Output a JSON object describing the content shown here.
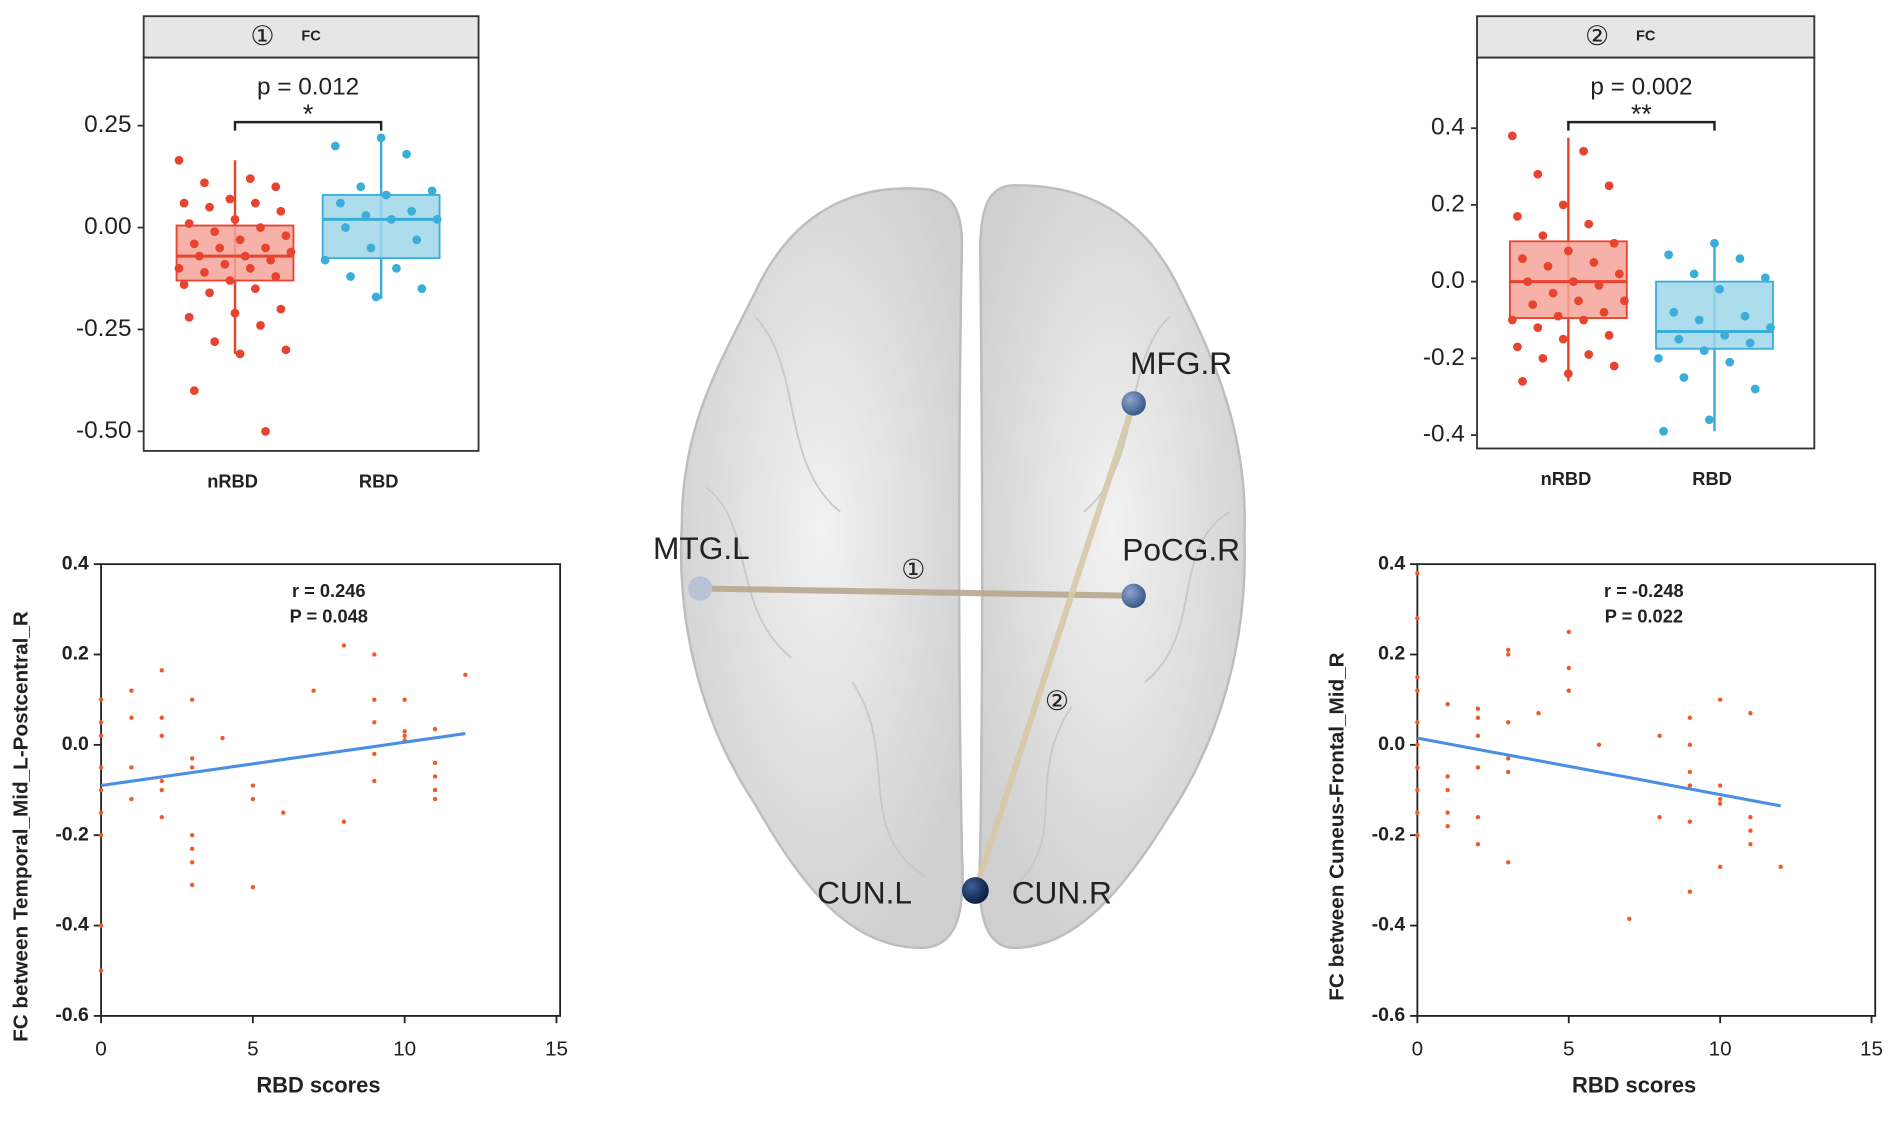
{
  "chart_data": [
    {
      "type": "box",
      "panel_label": "①",
      "title": "FC",
      "categories": [
        "nRBD",
        "RBD"
      ],
      "colors": [
        "#e8432e",
        "#3aaed8"
      ],
      "fill_colors": [
        "#f4a49a",
        "#9fd6ea"
      ],
      "ylim": [
        -0.548,
        0.417
      ],
      "yticks": [
        {
          "value": -0.5,
          "label": "-0.50"
        },
        -0.25,
        {
          "value": 0,
          "label": "0.00"
        },
        0.25
      ],
      "boxes": [
        {
          "min": -0.31,
          "q1": -0.13,
          "median": -0.07,
          "q3": 0.005,
          "max": 0.165
        },
        {
          "min": -0.175,
          "q1": -0.075,
          "median": 0.02,
          "q3": 0.08,
          "max": 0.22
        }
      ],
      "points": [
        [
          0.165,
          0.12,
          0.11,
          0.1,
          0.07,
          0.06,
          0.06,
          0.05,
          0.04,
          0.02,
          0.01,
          0,
          -0.01,
          -0.02,
          -0.03,
          -0.04,
          -0.05,
          -0.05,
          -0.06,
          -0.07,
          -0.07,
          -0.08,
          -0.09,
          -0.1,
          -0.1,
          -0.11,
          -0.12,
          -0.13,
          -0.14,
          -0.15,
          -0.16,
          -0.2,
          -0.21,
          -0.22,
          -0.24,
          -0.28,
          -0.3,
          -0.31,
          -0.4,
          -0.5
        ],
        [
          0.22,
          0.2,
          0.18,
          0.1,
          0.09,
          0.08,
          0.06,
          0.04,
          0.03,
          0.02,
          0.02,
          0,
          -0.03,
          -0.05,
          -0.08,
          -0.1,
          -0.12,
          -0.15,
          -0.17
        ]
      ],
      "p_text": "p = 0.012",
      "significance": "*"
    },
    {
      "type": "box",
      "panel_label": "②",
      "title": "FC",
      "categories": [
        "nRBD",
        "RBD"
      ],
      "colors": [
        "#e8432e",
        "#3aaed8"
      ],
      "fill_colors": [
        "#f4a49a",
        "#9fd6ea"
      ],
      "ylim": [
        -0.435,
        0.584
      ],
      "yticks": [
        -0.4,
        -0.2,
        {
          "value": 0,
          "label": "0.0"
        },
        0.2,
        0.4
      ],
      "boxes": [
        {
          "min": -0.26,
          "q1": -0.095,
          "median": 0,
          "q3": 0.105,
          "max": 0.375
        },
        {
          "min": -0.39,
          "q1": -0.175,
          "median": -0.13,
          "q3": 0,
          "max": 0.1
        }
      ],
      "points": [
        [
          0.38,
          0.34,
          0.28,
          0.25,
          0.2,
          0.17,
          0.15,
          0.12,
          0.1,
          0.08,
          0.06,
          0.05,
          0.04,
          0.02,
          0,
          0,
          -0.01,
          -0.03,
          -0.05,
          -0.05,
          -0.06,
          -0.08,
          -0.09,
          -0.1,
          -0.1,
          -0.12,
          -0.14,
          -0.15,
          -0.17,
          -0.19,
          -0.2,
          -0.22,
          -0.24,
          -0.26
        ],
        [
          0.1,
          0.07,
          0.06,
          0.02,
          0.01,
          -0.02,
          -0.08,
          -0.09,
          -0.1,
          -0.12,
          -0.14,
          -0.15,
          -0.16,
          -0.18,
          -0.2,
          -0.21,
          -0.25,
          -0.28,
          -0.36,
          -0.39
        ]
      ],
      "p_text": "p = 0.002",
      "significance": "**"
    },
    {
      "type": "scatter",
      "x_label": "RBD scores",
      "y_label": "FC between Temporal_Mid_L-Postcentral_R",
      "stats": [
        "r = 0.246",
        "P = 0.048"
      ],
      "color": "#f05a28",
      "fit_color": "#4a90e2",
      "xlim": [
        0,
        15
      ],
      "ylim": [
        -0.6,
        0.4
      ],
      "xticks": [
        0,
        5,
        10,
        15
      ],
      "yticks": [
        -0.6,
        -0.4,
        -0.2,
        {
          "value": 0,
          "label": "0.0"
        },
        0.2,
        0.4
      ],
      "x": [
        0,
        0,
        0,
        0,
        0,
        0,
        0,
        0,
        0,
        1,
        1,
        1,
        1,
        2,
        2,
        2,
        2,
        2,
        2,
        3,
        3,
        3,
        3,
        3,
        3,
        3,
        4,
        5,
        5,
        5,
        6,
        7,
        8,
        8,
        9,
        9,
        9,
        9,
        9,
        10,
        10,
        10,
        10,
        11,
        11,
        11,
        11,
        11,
        12
      ],
      "y": [
        0.1,
        0.05,
        0.02,
        -0.05,
        -0.1,
        -0.15,
        -0.2,
        -0.4,
        -0.5,
        0.12,
        0.06,
        -0.05,
        -0.12,
        0.165,
        0.06,
        0.02,
        -0.08,
        -0.1,
        -0.16,
        0.1,
        -0.03,
        -0.05,
        -0.2,
        -0.23,
        -0.26,
        -0.31,
        0.015,
        -0.09,
        -0.12,
        -0.315,
        -0.15,
        0.12,
        0.22,
        -0.17,
        0.2,
        0.1,
        0.05,
        -0.02,
        -0.08,
        0.1,
        0.03,
        0.02,
        0.01,
        -0.04,
        -0.07,
        -0.1,
        -0.12,
        0.035,
        0.155
      ],
      "fit": {
        "x": [
          0,
          12
        ],
        "y": [
          -0.09,
          0.025
        ]
      }
    },
    {
      "type": "scatter",
      "x_label": "RBD scores",
      "y_label": "FC between Cuneus-Frontal_Mid_R",
      "stats": [
        "r = -0.248",
        "P = 0.022"
      ],
      "color": "#f05a28",
      "fit_color": "#4a90e2",
      "xlim": [
        0,
        15
      ],
      "ylim": [
        -0.6,
        0.4
      ],
      "xticks": [
        0,
        5,
        10,
        15
      ],
      "yticks": [
        -0.6,
        -0.4,
        -0.2,
        {
          "value": 0,
          "label": "0.0"
        },
        0.2,
        0.4
      ],
      "x": [
        0,
        0,
        0,
        0,
        0,
        0,
        0,
        0,
        0,
        0,
        1,
        1,
        1,
        1,
        1,
        2,
        2,
        2,
        2,
        2,
        2,
        3,
        3,
        3,
        3,
        3,
        3,
        4,
        5,
        5,
        5,
        6,
        7,
        8,
        8,
        9,
        9,
        9,
        9,
        9,
        9,
        10,
        10,
        10,
        10,
        10,
        11,
        11,
        11,
        11,
        12
      ],
      "y": [
        0.38,
        0.28,
        0.15,
        0.12,
        0.05,
        0,
        -0.05,
        -0.1,
        -0.15,
        -0.2,
        0.09,
        -0.07,
        -0.1,
        -0.15,
        -0.18,
        0.08,
        0.06,
        0.02,
        -0.05,
        -0.16,
        -0.22,
        0.21,
        0.2,
        0.05,
        -0.03,
        -0.06,
        -0.26,
        0.07,
        0.25,
        0.17,
        0.12,
        0,
        -0.385,
        0.02,
        -0.16,
        0.06,
        0,
        -0.06,
        -0.09,
        -0.17,
        -0.325,
        0.1,
        -0.09,
        -0.12,
        -0.13,
        -0.27,
        0.07,
        -0.16,
        -0.19,
        -0.22,
        -0.27
      ],
      "fit": {
        "x": [
          0,
          12
        ],
        "y": [
          0.015,
          -0.135
        ]
      }
    }
  ],
  "brain": {
    "nodes": [
      "MTG.L",
      "MFG.R",
      "PoCG.R",
      "CUN.L",
      "CUN.R"
    ],
    "edges": [
      "①",
      "②"
    ]
  }
}
